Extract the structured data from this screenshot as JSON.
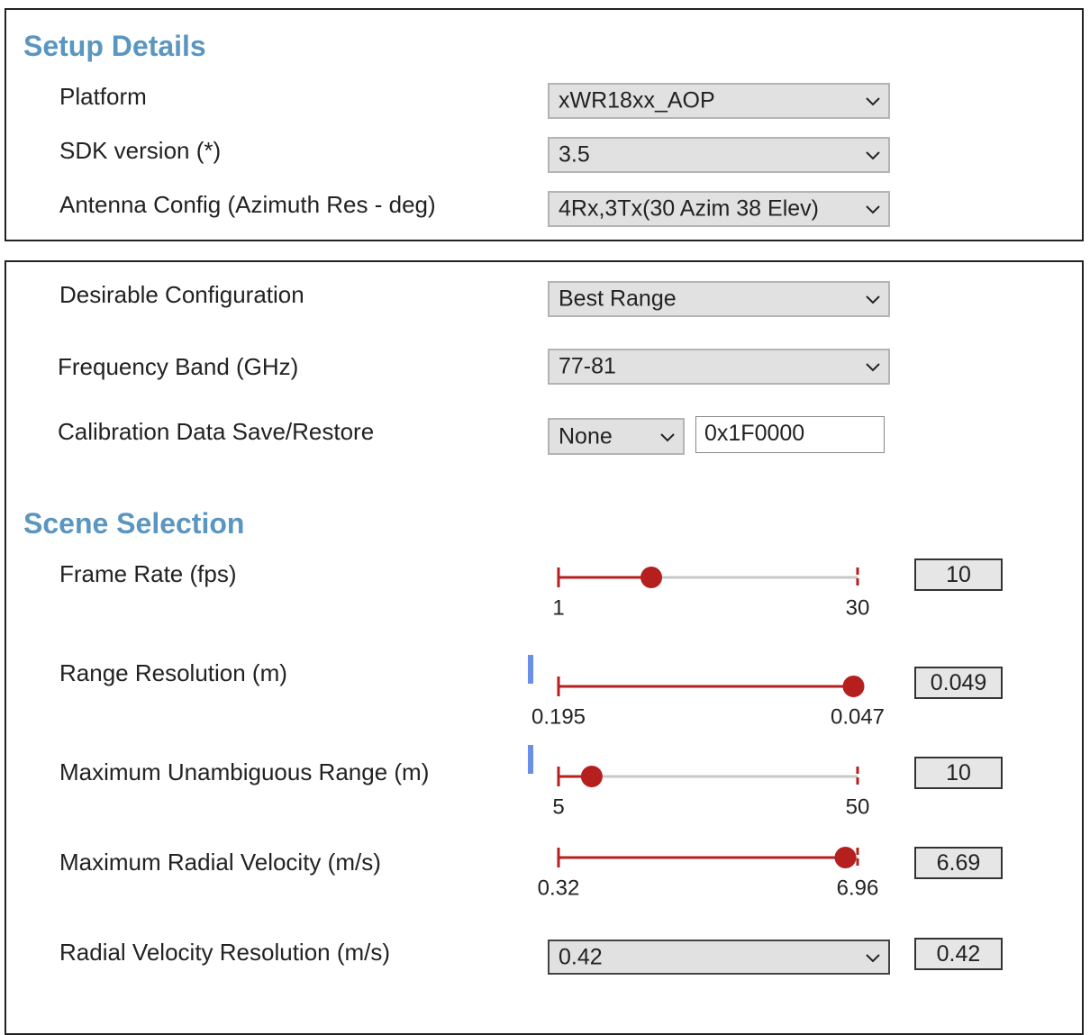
{
  "setup_details": {
    "title": "Setup Details",
    "fields": [
      {
        "label": "Platform",
        "value": "xWR18xx_AOP"
      },
      {
        "label": "SDK version (*)",
        "value": "3.5"
      },
      {
        "label": "Antenna Config (Azimuth Res - deg)",
        "value": "4Rx,3Tx(30 Azim 38 Elev)"
      }
    ]
  },
  "configuration": {
    "fields": [
      {
        "label": "Desirable Configuration",
        "value": "Best Range"
      },
      {
        "label": "Frequency Band (GHz)",
        "value": "77-81"
      },
      {
        "label": "Calibration Data Save/Restore",
        "value": "None",
        "address": "0x1F0000"
      }
    ]
  },
  "scene_selection": {
    "title": "Scene Selection",
    "sliders": [
      {
        "label": "Frame Rate (fps)",
        "start": 1,
        "end": 30,
        "value": 10
      },
      {
        "label": "Range Resolution (m)",
        "start": 0.195,
        "end": 0.047,
        "value": 0.049
      },
      {
        "label": "Maximum Unambiguous Range (m)",
        "start": 5,
        "end": 50,
        "value": 10
      },
      {
        "label": "Maximum Radial Velocity (m/s)",
        "start": 0.32,
        "end": 6.96,
        "value": 6.69
      }
    ],
    "radial_velocity_resolution": {
      "label": "Radial Velocity Resolution (m/s)",
      "value": "0.42",
      "display": 0.42
    }
  }
}
